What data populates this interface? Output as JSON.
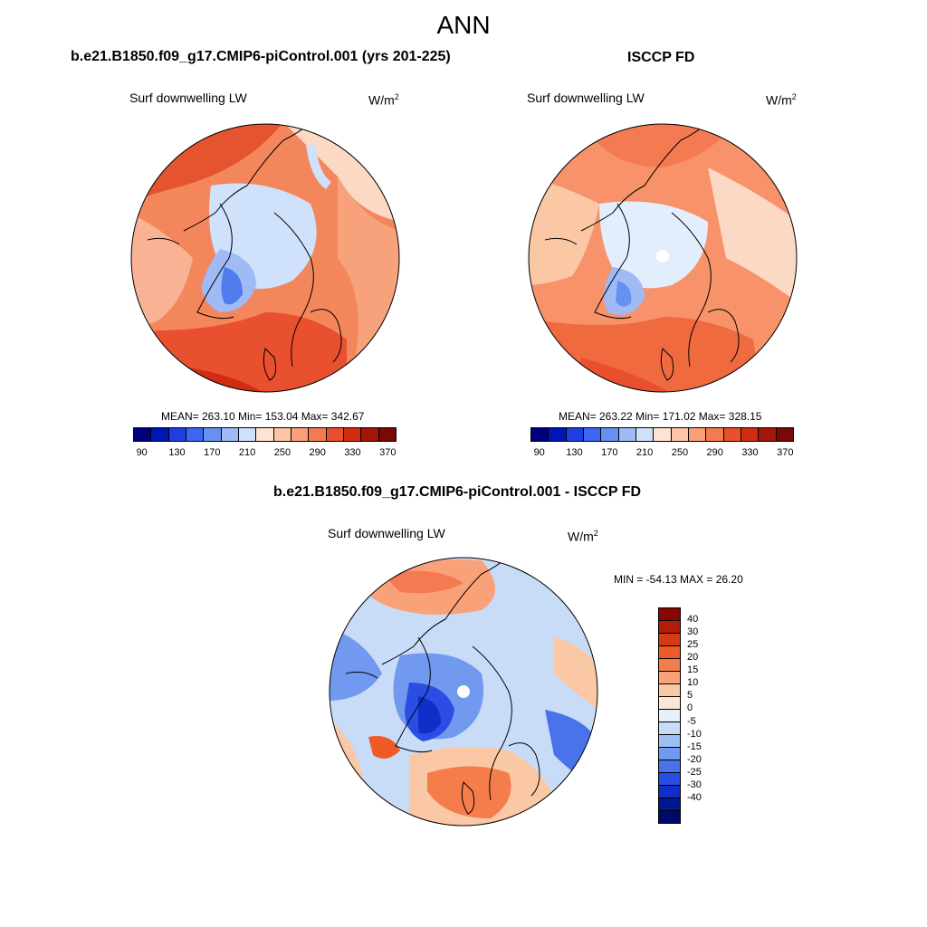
{
  "title": "ANN",
  "panels": [
    {
      "case": "b.e21.B1850.f09_g17.CMIP6-piControl.001 (yrs 201-225)",
      "variable": "Surf downwelling LW",
      "units_base": "W/m",
      "units_exp": "2",
      "stats": "MEAN= 263.10  Min= 153.04  Max= 342.67"
    },
    {
      "case": "ISCCP FD",
      "variable": "Surf downwelling LW",
      "units_base": "W/m",
      "units_exp": "2",
      "stats": "MEAN= 263.22  Min= 171.02  Max= 328.15"
    },
    {
      "case": "b.e21.B1850.f09_g17.CMIP6-piControl.001 - ISCCP FD",
      "variable": "Surf downwelling LW",
      "units_base": "W/m",
      "units_exp": "2",
      "stats": "MIN = -54.13 MAX =  26.20"
    }
  ],
  "abs_colorbar": {
    "colors": [
      "#00007f",
      "#0016b4",
      "#1e3fe0",
      "#3c66f0",
      "#6890f0",
      "#9fbaf5",
      "#cfe0fb",
      "#fde4d2",
      "#fcc5a5",
      "#f9a07a",
      "#f47a52",
      "#e9502f",
      "#cf2c12",
      "#a31609",
      "#7a0806"
    ],
    "labels": [
      "90",
      "130",
      "170",
      "210",
      "250",
      "290",
      "330",
      "370"
    ]
  },
  "diff_colorbar": {
    "colors": [
      "#8a0605",
      "#b41c0a",
      "#d43a13",
      "#ef5a26",
      "#f57d4c",
      "#f9a27a",
      "#fbc8a6",
      "#fde6d6",
      "#e7f0fb",
      "#c8dcf8",
      "#9fbff4",
      "#7199ef",
      "#4a72eb",
      "#2a4ee4",
      "#0f2fc8",
      "#00188f",
      "#000a6a"
    ],
    "labels": [
      "40",
      "30",
      "25",
      "20",
      "15",
      "10",
      "5",
      "0",
      "-5",
      "-10",
      "-15",
      "-20",
      "-25",
      "-30",
      "-40"
    ]
  },
  "chart_data": [
    {
      "type": "heatmap",
      "projection": "north polar stereographic",
      "title": "b.e21.B1850.f09_g17.CMIP6-piControl.001 (yrs 201-225)",
      "variable": "Surf downwelling LW",
      "units": "W/m2",
      "mean": 263.1,
      "min": 153.04,
      "max": 342.67,
      "colorbar_levels": [
        90,
        130,
        170,
        210,
        250,
        290,
        330,
        370
      ]
    },
    {
      "type": "heatmap",
      "projection": "north polar stereographic",
      "title": "ISCCP FD",
      "variable": "Surf downwelling LW",
      "units": "W/m2",
      "mean": 263.22,
      "min": 171.02,
      "max": 328.15,
      "colorbar_levels": [
        90,
        130,
        170,
        210,
        250,
        290,
        330,
        370
      ]
    },
    {
      "type": "heatmap",
      "projection": "north polar stereographic",
      "title": "b.e21.B1850.f09_g17.CMIP6-piControl.001 - ISCCP FD",
      "variable": "Surf downwelling LW",
      "units": "W/m2",
      "min": -54.13,
      "max": 26.2,
      "colorbar_levels": [
        40,
        30,
        25,
        20,
        15,
        10,
        5,
        0,
        -5,
        -10,
        -15,
        -20,
        -25,
        -30,
        -40
      ]
    }
  ]
}
